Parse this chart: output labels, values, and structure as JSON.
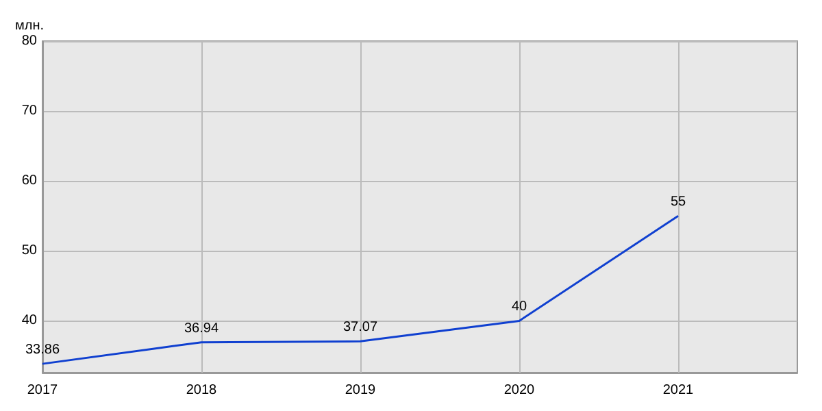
{
  "chart_data": {
    "type": "line",
    "ylabel": "млн.",
    "x": [
      2017,
      2018,
      2019,
      2020,
      2021
    ],
    "series": [
      {
        "color": "#1040d0",
        "values": [
          33.86,
          36.94,
          37.07,
          40,
          55
        ]
      }
    ],
    "data_labels": true,
    "xlim": [
      2017,
      2021.75
    ],
    "xticks": [
      2017,
      2018,
      2019,
      2020,
      2021
    ],
    "ylim": [
      32.6,
      80
    ],
    "yticks": [
      40,
      50,
      60,
      70,
      80
    ],
    "grid": true,
    "marker": "none",
    "line_style": "solid"
  }
}
